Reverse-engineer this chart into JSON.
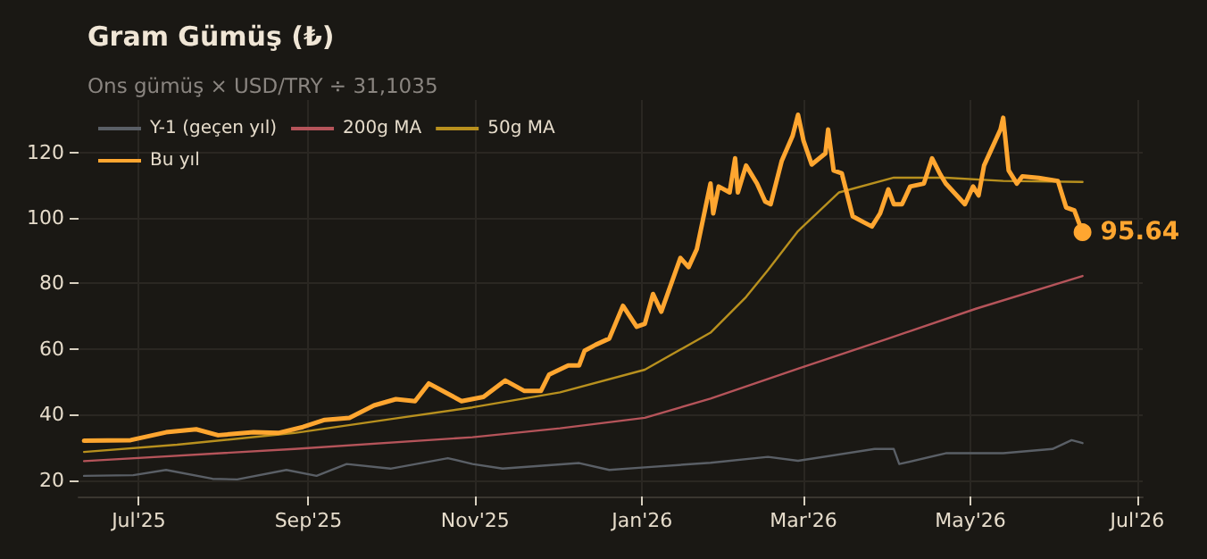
{
  "chart_data": {
    "type": "line",
    "title": "Gram Gümüş (₺)",
    "subtitle": "Ons gümüş × USD/TRY ÷ 31,1035",
    "xlim": [
      "2025-06-09",
      "2026-07-03"
    ],
    "ylim": [
      15,
      136
    ],
    "xticks": [
      {
        "value": "2025-07-01",
        "label": "Jul'25"
      },
      {
        "value": "2025-09-01",
        "label": "Sep'25"
      },
      {
        "value": "2025-11-01",
        "label": "Nov'25"
      },
      {
        "value": "2026-01-01",
        "label": "Jan'26"
      },
      {
        "value": "2026-03-01",
        "label": "Mar'26"
      },
      {
        "value": "2026-05-01",
        "label": "May'26"
      },
      {
        "value": "2026-07-01",
        "label": "Jul'26"
      }
    ],
    "yticks": [
      20,
      40,
      60,
      80,
      100,
      120
    ],
    "grid": true,
    "legend": "top left",
    "marker": "none",
    "line_style": "solid",
    "series": [
      {
        "name": "Y-1 (geçen yıl)",
        "color": "#5a5f66",
        "x": [
          "2025-06-11",
          "2025-06-29",
          "2025-07-11",
          "2025-07-28",
          "2025-08-06",
          "2025-08-24",
          "2025-09-04",
          "2025-09-15",
          "2025-10-01",
          "2025-10-22",
          "2025-10-31",
          "2025-11-11",
          "2025-12-09",
          "2025-12-20",
          "2026-01-02",
          "2026-01-26",
          "2026-02-16",
          "2026-02-27",
          "2026-03-27",
          "2026-04-03",
          "2026-04-05",
          "2026-04-22",
          "2026-05-13",
          "2026-05-31",
          "2026-06-07",
          "2026-06-11"
        ],
        "values": [
          21.3,
          21.5,
          23.1,
          20.4,
          20.2,
          23.1,
          21.3,
          24.9,
          23.5,
          26.7,
          24.9,
          23.5,
          25.2,
          23.1,
          23.9,
          25.3,
          27.1,
          25.9,
          29.5,
          29.5,
          24.9,
          28.2,
          28.2,
          29.5,
          32.2,
          31.3
        ]
      },
      {
        "name": "200g MA",
        "color": "#b5545a",
        "x": [
          "2025-06-11",
          "2025-08-27",
          "2025-10-31",
          "2025-12-02",
          "2026-01-02",
          "2026-01-26",
          "2026-02-27",
          "2026-04-01",
          "2026-05-03",
          "2026-06-11"
        ],
        "values": [
          25.8,
          29.5,
          33.1,
          35.8,
          39,
          44.9,
          54,
          63.2,
          72.3,
          82.3
        ]
      },
      {
        "name": "50g MA",
        "color": "#b8901e",
        "x": [
          "2025-06-11",
          "2025-07-15",
          "2025-08-27",
          "2025-10-01",
          "2025-10-31",
          "2025-12-02",
          "2026-01-02",
          "2026-01-26",
          "2026-02-08",
          "2026-02-16",
          "2026-02-27",
          "2026-03-14",
          "2026-04-03",
          "2026-04-22",
          "2026-05-13",
          "2026-06-11"
        ],
        "values": [
          28.6,
          30.8,
          34.4,
          38.6,
          42.2,
          46.8,
          53.7,
          65,
          75.9,
          84.1,
          96,
          107.8,
          112.3,
          112.3,
          111.3,
          111
        ]
      },
      {
        "name": "Bu yıl",
        "color": "#ffa630",
        "x": [
          "2025-06-11",
          "2025-06-28",
          "2025-07-11",
          "2025-07-22",
          "2025-07-30",
          "2025-08-12",
          "2025-08-21",
          "2025-08-30",
          "2025-09-07",
          "2025-09-16",
          "2025-09-25",
          "2025-10-03",
          "2025-10-10",
          "2025-10-15",
          "2025-10-21",
          "2025-10-27",
          "2025-11-04",
          "2025-11-12",
          "2025-11-19",
          "2025-11-25",
          "2025-11-28",
          "2025-12-05",
          "2025-12-09",
          "2025-12-11",
          "2025-12-15",
          "2025-12-20",
          "2025-12-25",
          "2025-12-30",
          "2026-01-02",
          "2026-01-05",
          "2026-01-08",
          "2026-01-15",
          "2026-01-18",
          "2026-01-21",
          "2026-01-26",
          "2026-01-27",
          "2026-01-29",
          "2026-02-02",
          "2026-02-04",
          "2026-02-05",
          "2026-02-08",
          "2026-02-12",
          "2026-02-15",
          "2026-02-17",
          "2026-02-21",
          "2026-02-25",
          "2026-02-27",
          "2026-03-01",
          "2026-03-04",
          "2026-03-09",
          "2026-03-10",
          "2026-03-12",
          "2026-03-15",
          "2026-03-19",
          "2026-03-23",
          "2026-03-26",
          "2026-03-29",
          "2026-04-01",
          "2026-04-03",
          "2026-04-06",
          "2026-04-09",
          "2026-04-14",
          "2026-04-17",
          "2026-04-20",
          "2026-04-22",
          "2026-04-29",
          "2026-05-02",
          "2026-05-04",
          "2026-05-06",
          "2026-05-12",
          "2026-05-13",
          "2026-05-15",
          "2026-05-18",
          "2026-05-20",
          "2026-05-26",
          "2026-06-02",
          "2026-06-05",
          "2026-06-08",
          "2026-06-11"
        ],
        "values": [
          32.0,
          32.2,
          34.6,
          35.5,
          33.7,
          34.6,
          34.4,
          36.2,
          38.4,
          39.0,
          42.8,
          44.7,
          44.1,
          49.5,
          46.8,
          44.1,
          45.4,
          50.4,
          47.2,
          47.2,
          52.2,
          55.0,
          55.0,
          59.5,
          61.3,
          63.2,
          73.2,
          66.8,
          67.7,
          76.8,
          71.4,
          87.8,
          85.0,
          90.5,
          110.5,
          101.4,
          109.6,
          107.8,
          118.2,
          107.8,
          116.0,
          110.5,
          105.0,
          104.2,
          117.3,
          125.0,
          131.5,
          123.6,
          116.3,
          119.7,
          127.0,
          114.5,
          113.6,
          100.5,
          98.7,
          97.4,
          101.4,
          108.7,
          104.2,
          104.2,
          109.6,
          110.5,
          118.2,
          113.3,
          110.5,
          104.2,
          109.6,
          106.9,
          116.0,
          127.0,
          130.6,
          114.5,
          110.5,
          112.7,
          112.2,
          111.3,
          103.2,
          102.3,
          95.64
        ],
        "value_labels": [
          null,
          null,
          null,
          null,
          null,
          null,
          null,
          null,
          null,
          null,
          null,
          null,
          null,
          null,
          null,
          null,
          null,
          null,
          null,
          null,
          null,
          null,
          null,
          null,
          null,
          null,
          null,
          null,
          null,
          null,
          null,
          null,
          null,
          null,
          null,
          null,
          null,
          null,
          null,
          null,
          null,
          null,
          null,
          null,
          null,
          null,
          null,
          null,
          null,
          null,
          null,
          null,
          null,
          null,
          null,
          null,
          null,
          null,
          null,
          null,
          null,
          null,
          null,
          null,
          null,
          null,
          null,
          null,
          null,
          null,
          null,
          null,
          null,
          null,
          null,
          null,
          null,
          null,
          "95.64"
        ]
      }
    ]
  }
}
